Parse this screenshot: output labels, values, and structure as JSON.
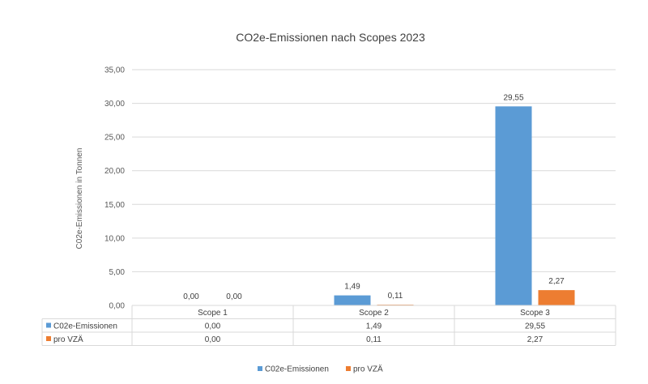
{
  "chart_data": {
    "type": "bar",
    "title": "CO2e-Emissionen nach Scopes 2023",
    "ylabel": "C02e-Emissionen in Tonnen",
    "xlabel": "",
    "categories": [
      "Scope 1",
      "Scope 2",
      "Scope 3"
    ],
    "series": [
      {
        "name": "C02e-Emissionen",
        "color": "#5B9BD5",
        "values": [
          0.0,
          1.49,
          29.55
        ],
        "labels": [
          "0,00",
          "1,49",
          "29,55"
        ]
      },
      {
        "name": "pro VZÄ",
        "color": "#ED7D31",
        "values": [
          0.0,
          0.11,
          2.27
        ],
        "labels": [
          "0,00",
          "0,11",
          "2,27"
        ]
      }
    ],
    "ylim": [
      0,
      35
    ],
    "yticks": [
      "0,00",
      "5,00",
      "10,00",
      "15,00",
      "20,00",
      "25,00",
      "30,00",
      "35,00"
    ],
    "grid": true,
    "legend_position": "bottom",
    "data_table": true
  }
}
